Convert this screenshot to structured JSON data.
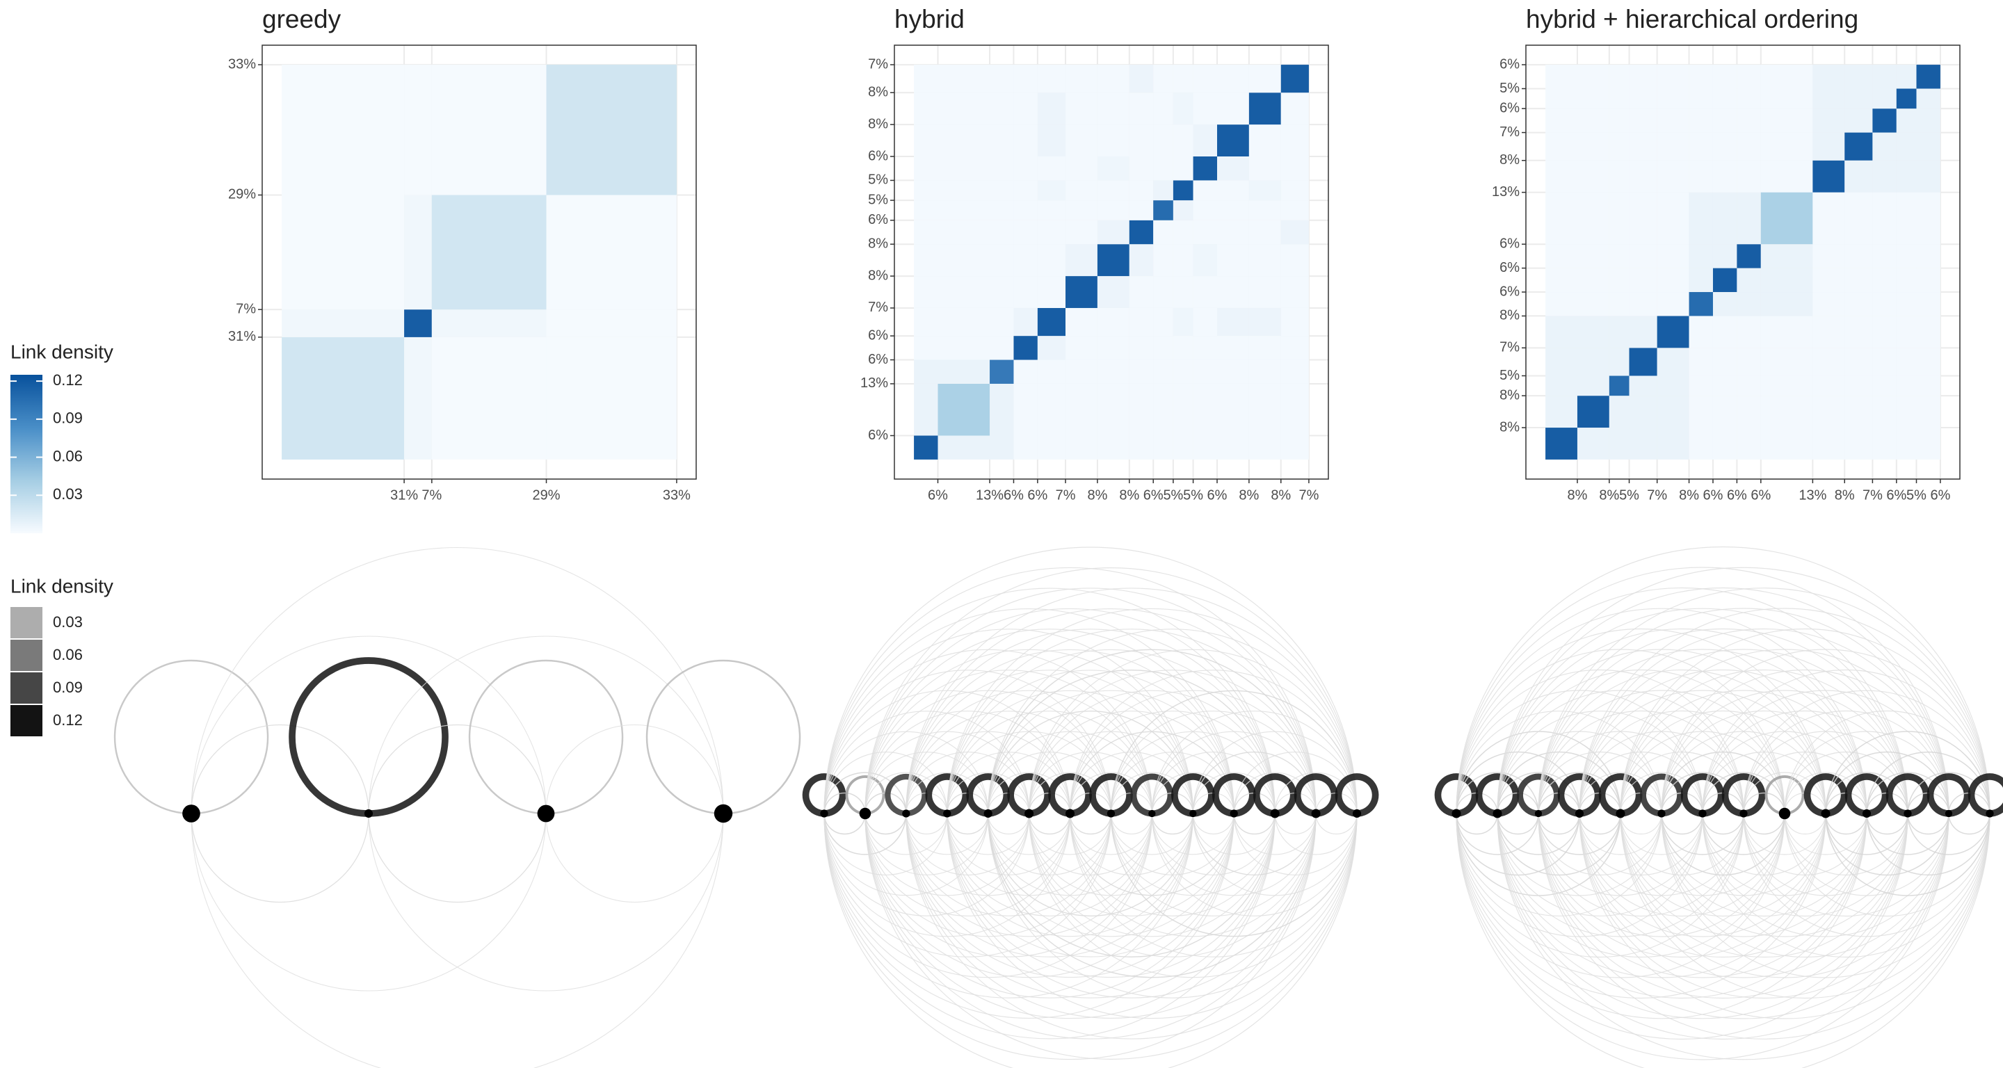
{
  "chart_data": [
    {
      "type": "heatmap",
      "title": "greedy",
      "blocks": [
        {
          "value": 31,
          "label": "31%"
        },
        {
          "value": 7,
          "label": "7%"
        },
        {
          "value": 29,
          "label": "29%"
        },
        {
          "value": 33,
          "label": "33%"
        }
      ],
      "values": [
        [
          0.02,
          0.004,
          0.001,
          0.001
        ],
        [
          0.004,
          0.12,
          0.004,
          0.001
        ],
        [
          0.001,
          0.004,
          0.02,
          0.001
        ],
        [
          0.001,
          0.001,
          0.001,
          0.021
        ]
      ]
    },
    {
      "type": "heatmap",
      "title": "hybrid",
      "blocks": [
        {
          "value": 6,
          "label": "6%"
        },
        {
          "value": 13,
          "label": "13%"
        },
        {
          "value": 6,
          "label": "6%"
        },
        {
          "value": 6,
          "label": "6%"
        },
        {
          "value": 7,
          "label": "7%"
        },
        {
          "value": 8,
          "label": "8%"
        },
        {
          "value": 8,
          "label": "8%"
        },
        {
          "value": 6,
          "label": "6%"
        },
        {
          "value": 5,
          "label": "5%"
        },
        {
          "value": 5,
          "label": "5%"
        },
        {
          "value": 6,
          "label": "6%"
        },
        {
          "value": 8,
          "label": "8%"
        },
        {
          "value": 8,
          "label": "8%"
        },
        {
          "value": 7,
          "label": "7%"
        }
      ],
      "values": [
        [
          0.12,
          0.007,
          0.007,
          0.002,
          0.002,
          0.002,
          0.002,
          0.002,
          0.002,
          0.002,
          0.002,
          0.002,
          0.002,
          0.002
        ],
        [
          0.007,
          0.04,
          0.007,
          0.002,
          0.002,
          0.002,
          0.002,
          0.002,
          0.002,
          0.002,
          0.002,
          0.002,
          0.002,
          0.002
        ],
        [
          0.007,
          0.007,
          0.1,
          0.002,
          0.002,
          0.002,
          0.002,
          0.002,
          0.002,
          0.002,
          0.002,
          0.002,
          0.002,
          0.002
        ],
        [
          0.002,
          0.002,
          0.002,
          0.12,
          0.006,
          0.002,
          0.002,
          0.002,
          0.002,
          0.002,
          0.002,
          0.002,
          0.002,
          0.002
        ],
        [
          0.002,
          0.002,
          0.002,
          0.006,
          0.12,
          0.002,
          0.002,
          0.002,
          0.002,
          0.005,
          0.002,
          0.006,
          0.006,
          0.002
        ],
        [
          0.002,
          0.002,
          0.002,
          0.002,
          0.002,
          0.12,
          0.006,
          0.002,
          0.002,
          0.002,
          0.002,
          0.002,
          0.002,
          0.002
        ],
        [
          0.002,
          0.002,
          0.002,
          0.002,
          0.002,
          0.006,
          0.12,
          0.006,
          0.002,
          0.002,
          0.005,
          0.002,
          0.002,
          0.002
        ],
        [
          0.002,
          0.002,
          0.002,
          0.002,
          0.002,
          0.002,
          0.006,
          0.12,
          0.002,
          0.002,
          0.002,
          0.002,
          0.002,
          0.006
        ],
        [
          0.002,
          0.002,
          0.002,
          0.002,
          0.002,
          0.002,
          0.002,
          0.002,
          0.11,
          0.006,
          0.002,
          0.002,
          0.002,
          0.002
        ],
        [
          0.002,
          0.002,
          0.002,
          0.002,
          0.005,
          0.002,
          0.002,
          0.002,
          0.006,
          0.12,
          0.002,
          0.002,
          0.005,
          0.002
        ],
        [
          0.002,
          0.002,
          0.002,
          0.002,
          0.002,
          0.002,
          0.005,
          0.002,
          0.002,
          0.002,
          0.12,
          0.006,
          0.002,
          0.002
        ],
        [
          0.002,
          0.002,
          0.002,
          0.002,
          0.006,
          0.002,
          0.002,
          0.002,
          0.002,
          0.002,
          0.006,
          0.12,
          0.002,
          0.002
        ],
        [
          0.002,
          0.002,
          0.002,
          0.002,
          0.006,
          0.002,
          0.002,
          0.002,
          0.002,
          0.005,
          0.002,
          0.002,
          0.12,
          0.002
        ],
        [
          0.002,
          0.002,
          0.002,
          0.002,
          0.002,
          0.002,
          0.002,
          0.006,
          0.002,
          0.002,
          0.002,
          0.002,
          0.002,
          0.12
        ]
      ]
    },
    {
      "type": "heatmap",
      "title": "hybrid + hierarchical ordering",
      "blocks": [
        {
          "value": 8,
          "label": "8%"
        },
        {
          "value": 8,
          "label": "8%"
        },
        {
          "value": 5,
          "label": "5%"
        },
        {
          "value": 7,
          "label": "7%"
        },
        {
          "value": 8,
          "label": "8%"
        },
        {
          "value": 6,
          "label": "6%"
        },
        {
          "value": 6,
          "label": "6%"
        },
        {
          "value": 6,
          "label": "6%"
        },
        {
          "value": 13,
          "label": "13%"
        },
        {
          "value": 8,
          "label": "8%"
        },
        {
          "value": 7,
          "label": "7%"
        },
        {
          "value": 6,
          "label": "6%"
        },
        {
          "value": 5,
          "label": "5%"
        },
        {
          "value": 6,
          "label": "6%"
        }
      ],
      "values": [
        [
          0.12,
          0.007,
          0.007,
          0.007,
          0.007,
          0.002,
          0.002,
          0.002,
          0.002,
          0.002,
          0.002,
          0.002,
          0.002,
          0.002
        ],
        [
          0.007,
          0.12,
          0.007,
          0.007,
          0.007,
          0.002,
          0.002,
          0.002,
          0.002,
          0.002,
          0.002,
          0.002,
          0.002,
          0.002
        ],
        [
          0.007,
          0.007,
          0.11,
          0.007,
          0.007,
          0.002,
          0.002,
          0.002,
          0.002,
          0.002,
          0.002,
          0.002,
          0.002,
          0.002
        ],
        [
          0.007,
          0.007,
          0.007,
          0.12,
          0.007,
          0.002,
          0.002,
          0.002,
          0.002,
          0.002,
          0.002,
          0.002,
          0.002,
          0.002
        ],
        [
          0.007,
          0.007,
          0.007,
          0.007,
          0.12,
          0.002,
          0.002,
          0.002,
          0.002,
          0.002,
          0.002,
          0.002,
          0.002,
          0.002
        ],
        [
          0.002,
          0.002,
          0.002,
          0.002,
          0.002,
          0.11,
          0.007,
          0.007,
          0.007,
          0.002,
          0.002,
          0.002,
          0.002,
          0.002
        ],
        [
          0.002,
          0.002,
          0.002,
          0.002,
          0.002,
          0.007,
          0.12,
          0.007,
          0.007,
          0.002,
          0.002,
          0.002,
          0.002,
          0.002
        ],
        [
          0.002,
          0.002,
          0.002,
          0.002,
          0.002,
          0.007,
          0.007,
          0.12,
          0.007,
          0.002,
          0.002,
          0.002,
          0.002,
          0.002
        ],
        [
          0.002,
          0.002,
          0.002,
          0.002,
          0.002,
          0.007,
          0.007,
          0.007,
          0.04,
          0.002,
          0.002,
          0.002,
          0.002,
          0.002
        ],
        [
          0.002,
          0.002,
          0.002,
          0.002,
          0.002,
          0.002,
          0.002,
          0.002,
          0.002,
          0.12,
          0.007,
          0.007,
          0.007,
          0.007
        ],
        [
          0.002,
          0.002,
          0.002,
          0.002,
          0.002,
          0.002,
          0.002,
          0.002,
          0.002,
          0.007,
          0.12,
          0.007,
          0.007,
          0.007
        ],
        [
          0.002,
          0.002,
          0.002,
          0.002,
          0.002,
          0.002,
          0.002,
          0.002,
          0.002,
          0.007,
          0.007,
          0.12,
          0.007,
          0.007
        ],
        [
          0.002,
          0.002,
          0.002,
          0.002,
          0.002,
          0.002,
          0.002,
          0.002,
          0.002,
          0.007,
          0.007,
          0.007,
          0.12,
          0.007
        ],
        [
          0.002,
          0.002,
          0.002,
          0.002,
          0.002,
          0.002,
          0.002,
          0.002,
          0.002,
          0.007,
          0.007,
          0.007,
          0.007,
          0.12
        ]
      ]
    }
  ],
  "color_legend": {
    "title": "Link density",
    "ticks": [
      0.03,
      0.06,
      0.09,
      0.12
    ],
    "lim": [
      0,
      0.125
    ]
  },
  "arc_legend": {
    "title": "Link density",
    "keys": [
      0.03,
      0.06,
      0.09,
      0.12
    ]
  }
}
